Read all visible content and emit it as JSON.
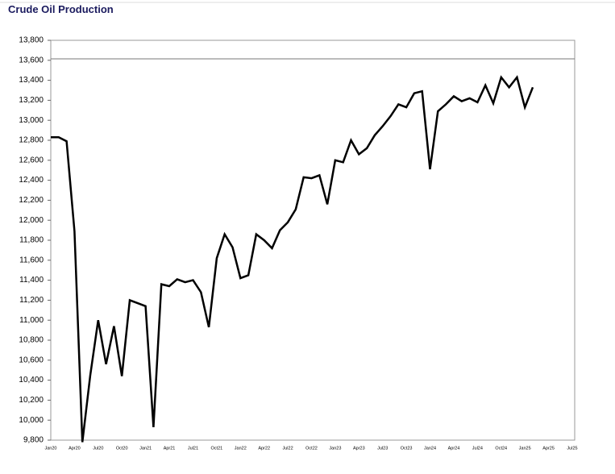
{
  "chart_data": {
    "type": "line",
    "title": "Crude Oil Production",
    "categories": [
      "Jan20",
      null,
      null,
      "Apr20",
      null,
      null,
      "Jul20",
      null,
      null,
      "Oct20",
      null,
      null,
      "Jan21",
      null,
      null,
      "Apr21",
      null,
      null,
      "Jul21",
      null,
      null,
      "Oct21",
      null,
      null,
      "Jan22",
      null,
      null,
      "Apr22",
      null,
      null,
      "Jul22",
      null,
      null,
      "Oct22",
      null,
      null,
      "Jan23",
      null,
      null,
      "Apr23",
      null,
      null,
      "Jul23",
      null,
      null,
      "Oct23",
      null,
      null,
      "Jan24",
      null,
      null,
      "Apr24",
      null,
      null,
      "Jul24",
      null,
      null,
      "Oct24",
      null,
      null,
      "Jan25",
      null,
      null,
      "Apr25",
      null,
      null,
      "Jul25"
    ],
    "series": [
      {
        "color": "#000000",
        "values": [
          12830,
          12830,
          12790,
          11890,
          9780,
          10450,
          11000,
          10560,
          10940,
          10440,
          11200,
          11170,
          11140,
          9930,
          11360,
          11340,
          11410,
          11380,
          11400,
          11280,
          10930,
          11620,
          11860,
          11730,
          11420,
          11450,
          11860,
          11800,
          11720,
          11900,
          11980,
          12110,
          12430,
          12420,
          12450,
          12160,
          12600,
          12580,
          12800,
          12660,
          12720,
          12850,
          12940,
          13040,
          13160,
          13130,
          13270,
          13290,
          12510,
          13090,
          13160,
          13240,
          13190,
          13220,
          13180,
          13350,
          13170,
          13430,
          13330,
          13430,
          13130,
          13330,
          null,
          null,
          null,
          null,
          null
        ]
      }
    ],
    "ylim": [
      9800,
      13800
    ],
    "yticks": [
      {
        "value": 9800,
        "label": "9,800"
      },
      {
        "value": 10000,
        "label": "10,000"
      },
      {
        "value": 10200,
        "label": "10,200"
      },
      {
        "value": 10400,
        "label": "10,400"
      },
      {
        "value": 10600,
        "label": "10,600"
      },
      {
        "value": 10800,
        "label": "10,800"
      },
      {
        "value": 11000,
        "label": "11,000"
      },
      {
        "value": 11200,
        "label": "11,200"
      },
      {
        "value": 11400,
        "label": "11,400"
      },
      {
        "value": 11600,
        "label": "11,600"
      },
      {
        "value": 11800,
        "label": "11,800"
      },
      {
        "value": 12000,
        "label": "12,000"
      },
      {
        "value": 12200,
        "label": "12,200"
      },
      {
        "value": 12400,
        "label": "12,400"
      },
      {
        "value": 12600,
        "label": "12,600"
      },
      {
        "value": 12800,
        "label": "12,800"
      },
      {
        "value": 13000,
        "label": "13,000"
      },
      {
        "value": 13200,
        "label": "13,200"
      },
      {
        "value": 13400,
        "label": "13,400"
      },
      {
        "value": 13600,
        "label": "13,600"
      },
      {
        "value": 13800,
        "label": "13,800"
      }
    ]
  }
}
